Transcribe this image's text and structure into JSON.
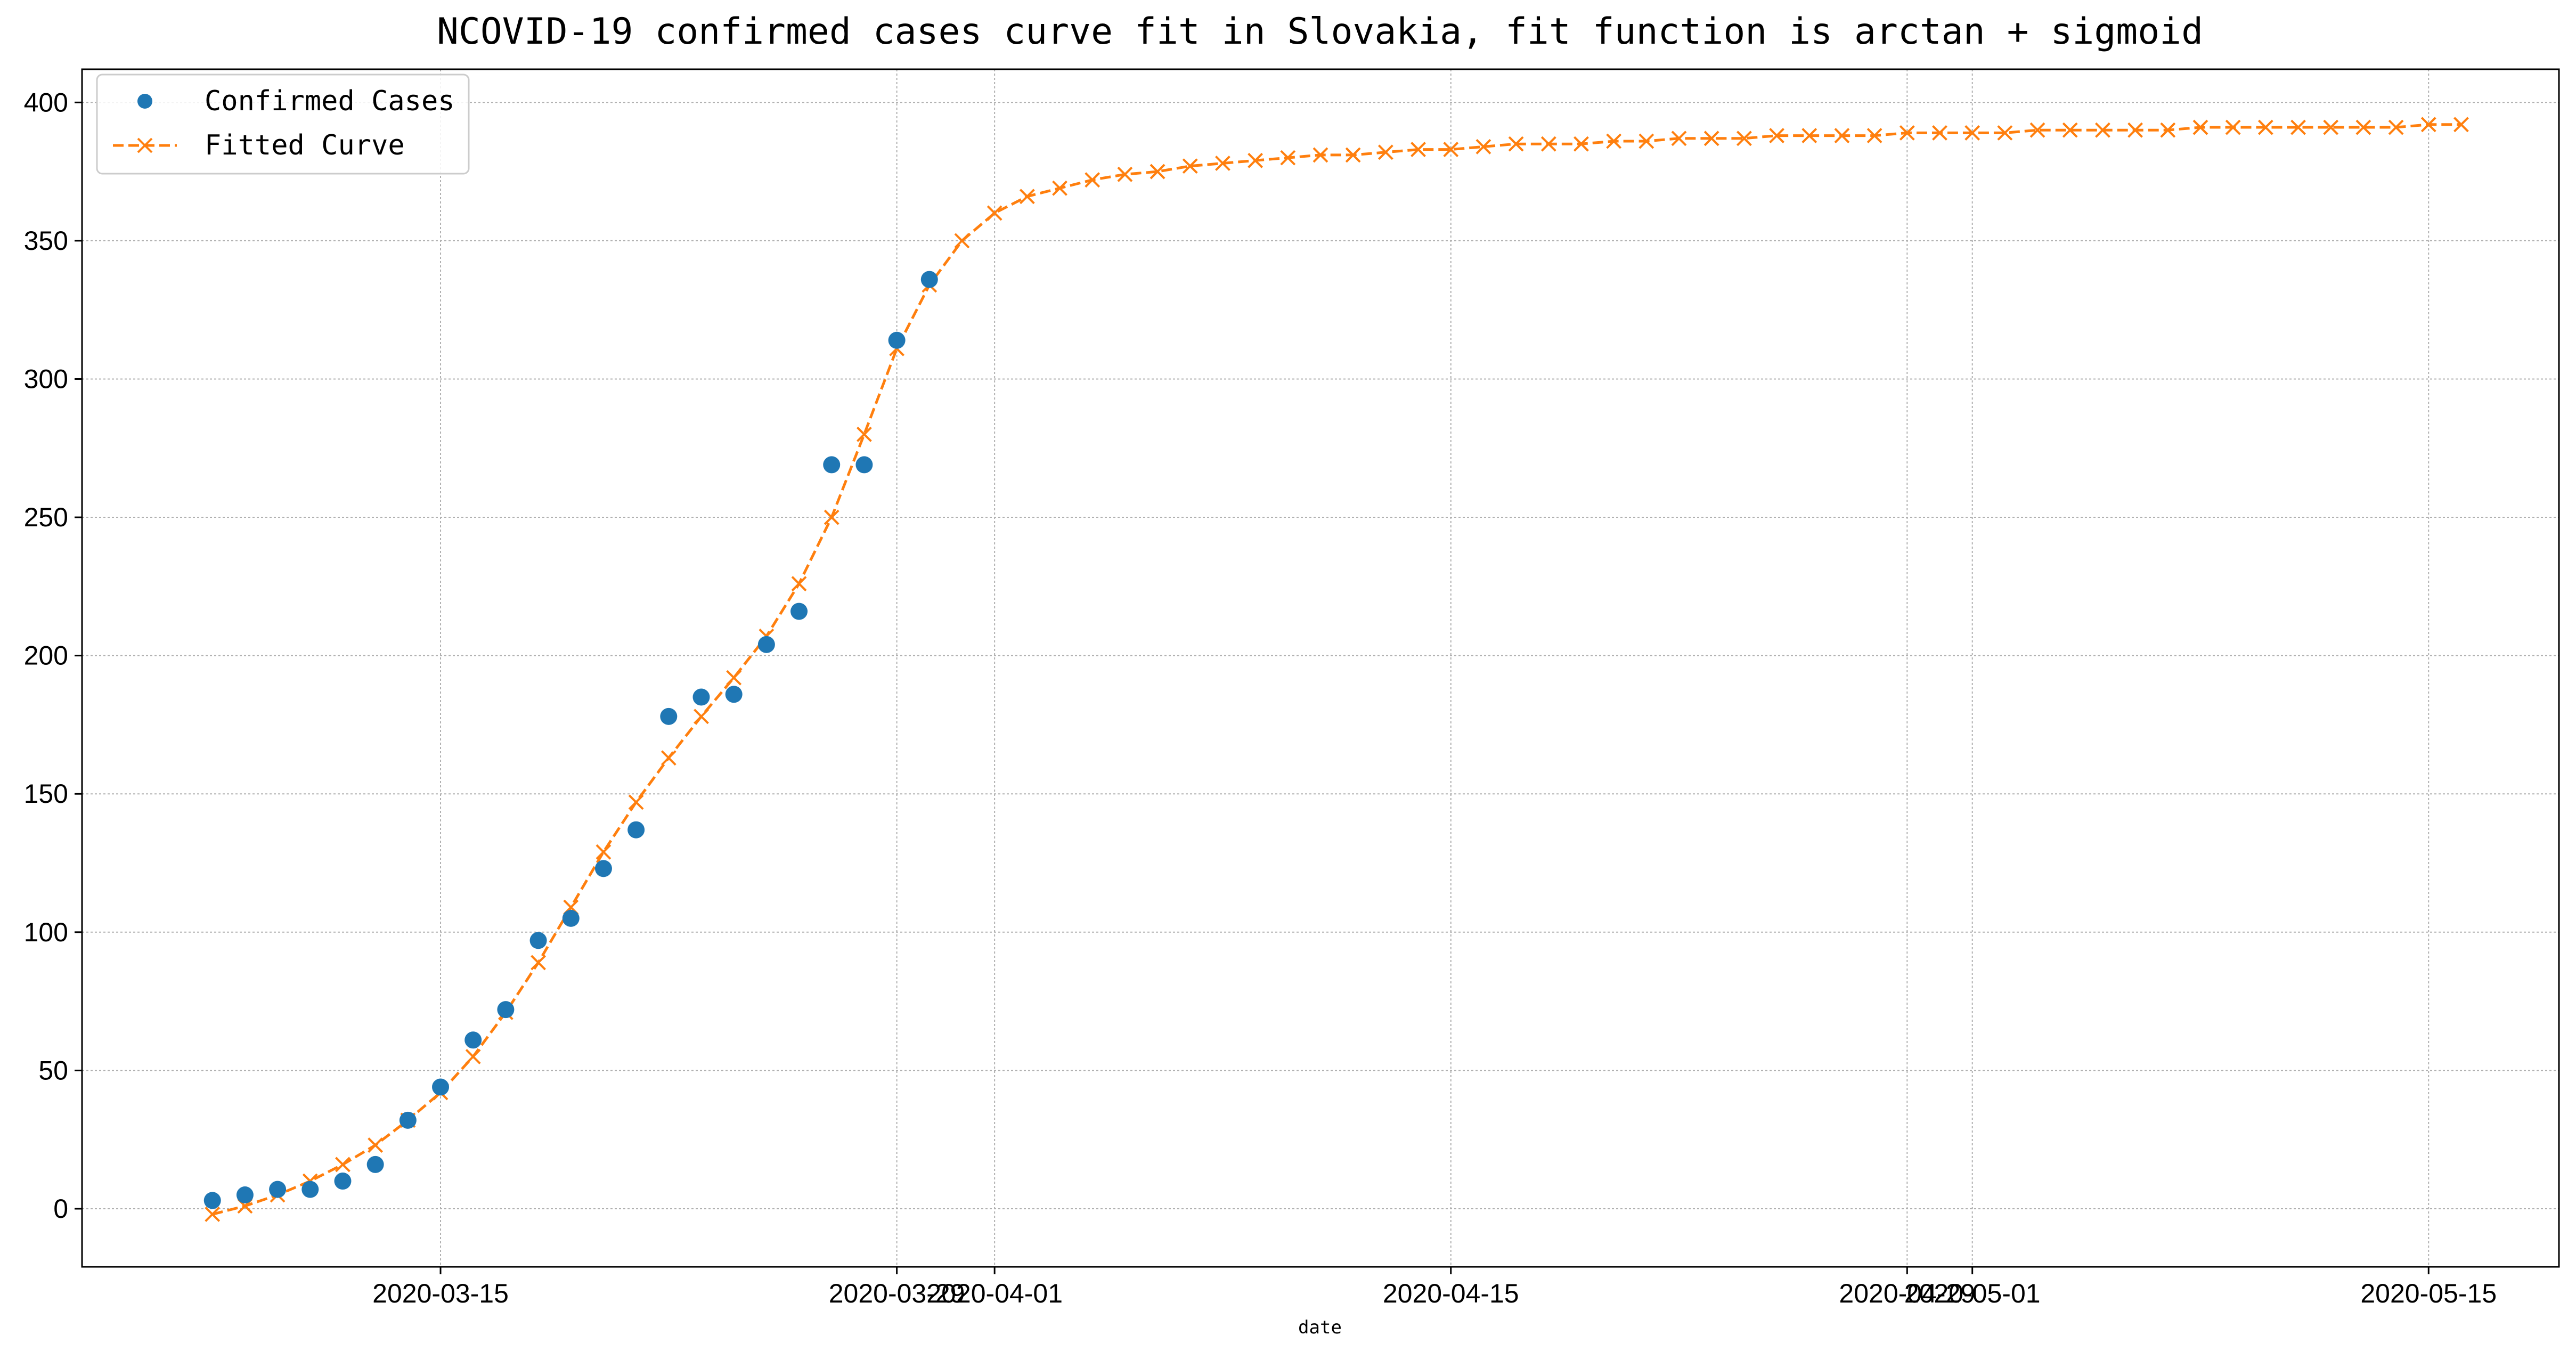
{
  "chart_data": {
    "type": "line",
    "title": "NCOVID-19 confirmed cases curve fit in Slovakia, fit function is arctan + sigmoid",
    "xlabel": "date",
    "ylabel": "",
    "ylim": [
      -21,
      412
    ],
    "xlim": [
      "2020-03-04",
      "2020-05-19"
    ],
    "grid": true,
    "legend_placement": "top-left",
    "x_ticks": [
      "2020-03-15",
      "2020-03-29",
      "2020-04-01",
      "2020-04-15",
      "2020-04-29",
      "2020-05-01",
      "2020-05-15"
    ],
    "y_ticks": [
      0,
      50,
      100,
      150,
      200,
      250,
      300,
      350,
      400
    ],
    "series": [
      {
        "name": "Confirmed Cases",
        "style": "markers",
        "marker": "circle",
        "color": "#1f77b4",
        "x": [
          "2020-03-08",
          "2020-03-09",
          "2020-03-10",
          "2020-03-11",
          "2020-03-12",
          "2020-03-13",
          "2020-03-14",
          "2020-03-15",
          "2020-03-16",
          "2020-03-17",
          "2020-03-18",
          "2020-03-19",
          "2020-03-20",
          "2020-03-21",
          "2020-03-22",
          "2020-03-23",
          "2020-03-24",
          "2020-03-25",
          "2020-03-26",
          "2020-03-27",
          "2020-03-28",
          "2020-03-29",
          "2020-03-30"
        ],
        "y": [
          3,
          5,
          7,
          7,
          10,
          16,
          32,
          44,
          61,
          72,
          97,
          105,
          123,
          137,
          178,
          185,
          186,
          204,
          216,
          269,
          269,
          314,
          336
        ]
      },
      {
        "name": "Fitted Curve",
        "style": "dashed-line",
        "marker": "x",
        "color": "#ff7f0e",
        "x": [
          "2020-03-08",
          "2020-03-09",
          "2020-03-10",
          "2020-03-11",
          "2020-03-12",
          "2020-03-13",
          "2020-03-14",
          "2020-03-15",
          "2020-03-16",
          "2020-03-17",
          "2020-03-18",
          "2020-03-19",
          "2020-03-20",
          "2020-03-21",
          "2020-03-22",
          "2020-03-23",
          "2020-03-24",
          "2020-03-25",
          "2020-03-26",
          "2020-03-27",
          "2020-03-28",
          "2020-03-29",
          "2020-03-30",
          "2020-03-31",
          "2020-04-01",
          "2020-04-02",
          "2020-04-03",
          "2020-04-04",
          "2020-04-05",
          "2020-04-06",
          "2020-04-07",
          "2020-04-08",
          "2020-04-09",
          "2020-04-10",
          "2020-04-11",
          "2020-04-12",
          "2020-04-13",
          "2020-04-14",
          "2020-04-15",
          "2020-04-16",
          "2020-04-17",
          "2020-04-18",
          "2020-04-19",
          "2020-04-20",
          "2020-04-21",
          "2020-04-22",
          "2020-04-23",
          "2020-04-24",
          "2020-04-25",
          "2020-04-26",
          "2020-04-27",
          "2020-04-28",
          "2020-04-29",
          "2020-04-30",
          "2020-05-01",
          "2020-05-02",
          "2020-05-03",
          "2020-05-04",
          "2020-05-05",
          "2020-05-06",
          "2020-05-07",
          "2020-05-08",
          "2020-05-09",
          "2020-05-10",
          "2020-05-11",
          "2020-05-12",
          "2020-05-13",
          "2020-05-14",
          "2020-05-15",
          "2020-05-16"
        ],
        "y": [
          -2,
          1,
          5,
          10,
          16,
          23,
          32,
          42,
          55,
          71,
          89,
          109,
          129,
          147,
          163,
          178,
          192,
          207,
          226,
          250,
          280,
          311,
          334,
          350,
          360,
          366,
          369,
          372,
          374,
          375,
          377,
          378,
          379,
          380,
          381,
          381,
          382,
          383,
          383,
          384,
          385,
          385,
          385,
          386,
          386,
          387,
          387,
          387,
          388,
          388,
          388,
          388,
          389,
          389,
          389,
          389,
          390,
          390,
          390,
          390,
          390,
          391,
          391,
          391,
          391,
          391,
          391,
          391,
          392,
          392
        ]
      }
    ]
  }
}
